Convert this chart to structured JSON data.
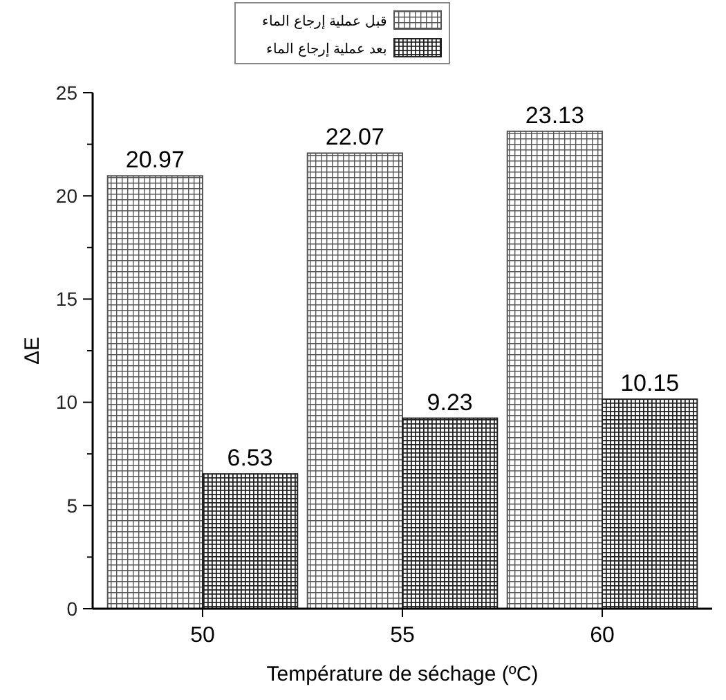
{
  "chart_data": {
    "type": "bar",
    "xlabel": "Température de séchage  (ºC)",
    "ylabel": "ΔE",
    "categories": [
      "50",
      "55",
      "60"
    ],
    "series": [
      {
        "name": "قبل عملية إرجاع الماء",
        "color": "#555555",
        "values": [
          20.97,
          22.07,
          23.13
        ]
      },
      {
        "name": "بعد عملية إرجاع الماء",
        "color": "#222222",
        "values": [
          6.53,
          9.23,
          10.15
        ]
      }
    ],
    "ylim": [
      0,
      25
    ],
    "yticks": [
      0,
      {
        "value": 2.5,
        "label": null
      },
      5,
      {
        "value": 7.5,
        "label": null
      },
      10,
      {
        "value": 12.5,
        "label": null
      },
      15,
      {
        "value": 17.5,
        "label": null
      },
      20,
      {
        "value": 22.5,
        "label": null
      },
      25
    ],
    "data_labels": true,
    "legend": "top",
    "grid": false
  }
}
